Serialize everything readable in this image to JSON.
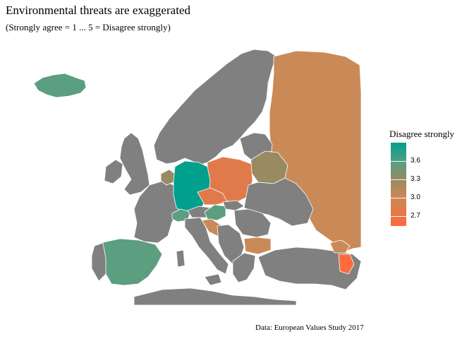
{
  "title": "Environmental threats are exaggerated",
  "subtitle": "(Strongly agree = 1 ... 5 = Disagree strongly)",
  "caption": "Data: European Values Study 2017",
  "legend": {
    "title": "Disagree strongly",
    "ticks": [
      "3.6",
      "3.3",
      "3.0",
      "2.7"
    ]
  },
  "colors": {
    "no_data": "#808080",
    "high": "#00a08c",
    "mid_high": "#5b9e80",
    "mid": "#9a8a62",
    "mid_low": "#c98a58",
    "low_mid": "#e07a4a",
    "low": "#ff6a3d",
    "border": "#ffffff"
  }
}
